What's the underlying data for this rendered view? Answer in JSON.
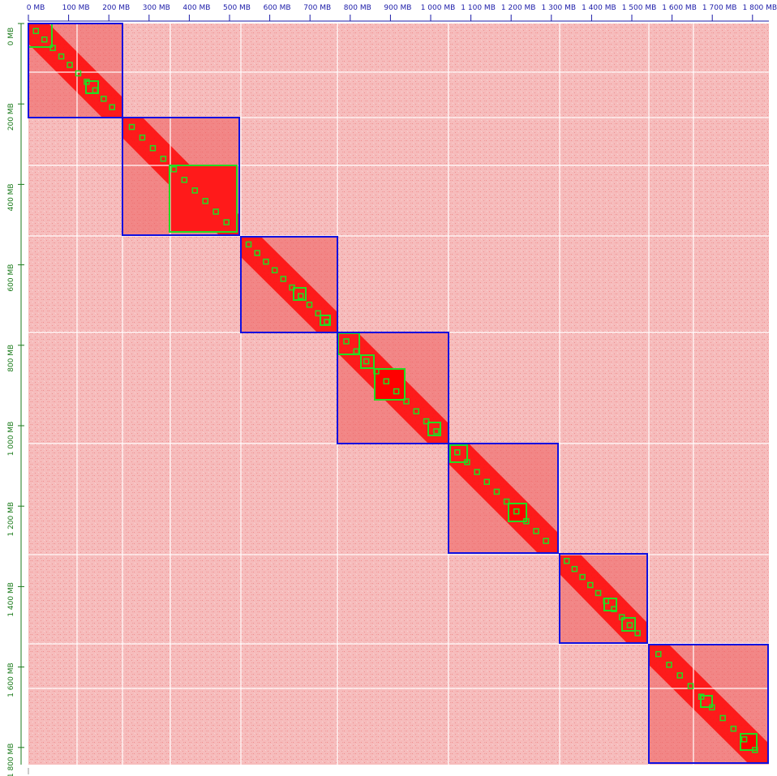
{
  "top_axis": {
    "labels": [
      "0 MB",
      "100 MB",
      "200 MB",
      "300 MB",
      "400 MB",
      "500 MB",
      "600 MB",
      "700 MB",
      "800 MB",
      "900 MB",
      "1 000 MB",
      "1 100 MB",
      "1 200 MB",
      "1 300 MB",
      "1 400 MB",
      "1 500 MB",
      "1 600 MB",
      "1 700 MB",
      "1 800 MB"
    ]
  },
  "left_axis": {
    "labels": [
      "0 MB",
      "200 MB",
      "400 MB",
      "600 MB",
      "800 MB",
      "1 000 MB",
      "1 200 MB",
      "1 400 MB",
      "1 600 MB",
      "1 800 MB"
    ]
  }
}
